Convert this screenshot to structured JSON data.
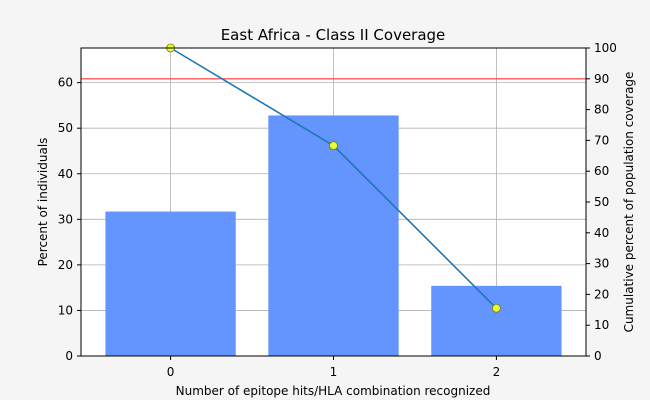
{
  "chart_data": {
    "type": "bar",
    "title": "East Africa - Class II Coverage",
    "xlabel": "Number of epitope hits/HLA combination recognized",
    "ylabel": "Percent of individuals",
    "y2label": "Cumulative percent of population coverage",
    "categories": [
      "0",
      "1",
      "2"
    ],
    "x": [
      0,
      1,
      2
    ],
    "xlim": [
      -0.55,
      2.55
    ],
    "ylim": [
      0,
      67.6
    ],
    "y2lim": [
      0,
      100
    ],
    "yticks": [
      0,
      10,
      20,
      30,
      40,
      50,
      60
    ],
    "y2ticks": [
      0,
      10,
      20,
      30,
      40,
      50,
      60,
      70,
      80,
      90,
      100
    ],
    "grid": true,
    "series": [
      {
        "kind": "bar",
        "axis": "left",
        "values": [
          31.7,
          52.8,
          15.4
        ],
        "color": "#6495ff"
      },
      {
        "kind": "line",
        "axis": "right",
        "values": [
          100,
          68.3,
          15.5
        ],
        "color": "#1f77b4",
        "marker_color": "#e6ff33"
      }
    ],
    "reference_line": {
      "axis": "right",
      "value": 90,
      "color": "#ff3333"
    },
    "colors": {
      "background": "#f5f5f5",
      "plot_background": "#ffffff",
      "grid": "#b0b0b0"
    }
  }
}
